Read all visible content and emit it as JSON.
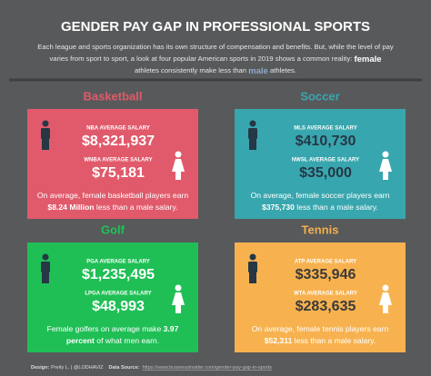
{
  "header": {
    "title": "GENDER PAY GAP IN PROFESSIONAL SPORTS",
    "description": [
      [
        {
          "text": "Each league and sports organization has its own structure of compensation and benefits. But, while the level of pay",
          "bold": false
        }
      ],
      [
        {
          "text": "varies from sport to sport, a look at four popular American sports in 2019 shows a common reality: ",
          "bold": false
        },
        {
          "text": "female",
          "bold": true
        }
      ],
      [
        {
          "text": "athletes consistently make less than ",
          "bold": false
        },
        {
          "text": "male",
          "bold": true
        },
        {
          "text": " athletes.",
          "bold": false
        }
      ]
    ]
  },
  "panels": [
    {
      "sport": "Basketball",
      "male_label": "NBA AVERAGE SALARY",
      "male_salary": "$8,321,937",
      "female_label": "WNBA AVERAGE SALARY",
      "female_salary": "$75,181",
      "caption": [
        [
          {
            "text": "On average, female basketball players earn",
            "bold": false
          }
        ],
        [
          {
            "text": "$8.24 Million",
            "bold": true
          },
          {
            "text": " less than a male salary.",
            "bold": false
          }
        ]
      ]
    },
    {
      "sport": "Soccer",
      "male_label": "MLS AVERAGE SALARY",
      "male_salary": "$410,730",
      "female_label": "NWSL AVERAGE SALARY",
      "female_salary": "$35,000",
      "caption": [
        [
          {
            "text": "On average, female soccer players earn",
            "bold": false
          }
        ],
        [
          {
            "text": "$375,730",
            "bold": true
          },
          {
            "text": " less than a male salary.",
            "bold": false
          }
        ]
      ]
    },
    {
      "sport": "Golf",
      "male_label": "PGA AVERAGE SALARY",
      "male_salary": "$1,235,495",
      "female_label": "LPGA AVERAGE SALARY",
      "female_salary": "$48,993",
      "caption": [
        [
          {
            "text": "Female golfers on average make ",
            "bold": false
          },
          {
            "text": "3.97",
            "bold": true
          }
        ],
        [
          {
            "text": "percent",
            "bold": true
          },
          {
            "text": " of what men earn.",
            "bold": false
          }
        ]
      ]
    },
    {
      "sport": "Tennis",
      "male_label": "ATP AVERAGE SALARY",
      "male_salary": "$335,946",
      "female_label": "WTA AVERAGE SALARY",
      "female_salary": "$283,635",
      "caption": [
        [
          {
            "text": "On average, female tennis players earn",
            "bold": false
          }
        ],
        [
          {
            "text": "$52,311",
            "bold": true
          },
          {
            "text": " less than a male salary.",
            "bold": false
          }
        ]
      ]
    }
  ],
  "footer": {
    "design_label": "Design:",
    "design": "Preity L. | @LODHAVIZ",
    "source_label": "Data Source:",
    "source": "https://www.businessinsider.com/gender-pay-gap-in-sports"
  }
}
